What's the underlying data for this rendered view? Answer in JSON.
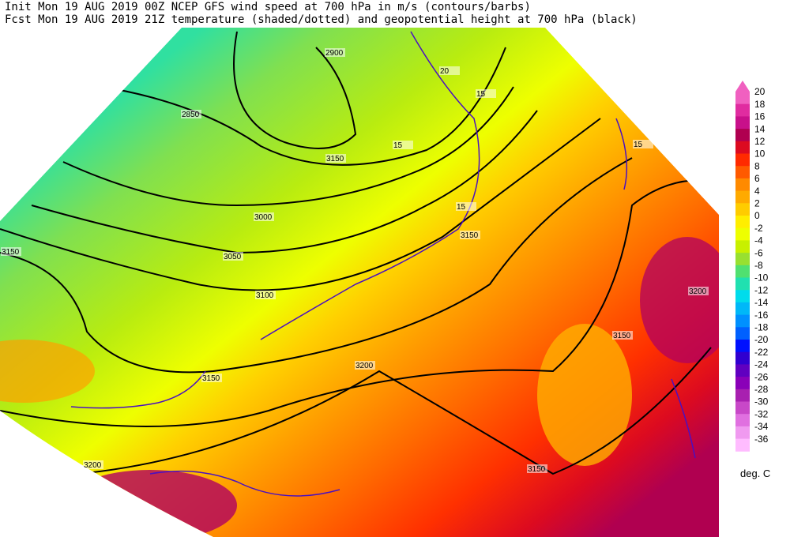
{
  "header": {
    "line1": "Init  Mon 19 AUG 2019 00Z  NCEP GFS wind speed at 700 hPa in m/s (contours/barbs)",
    "line2": "Fcst Mon 19 AUG 2019 21Z  temperature (shaded/dotted) and geopotential height at 700 hPa (black)"
  },
  "colorbar": {
    "levels": [
      {
        "value": 20,
        "color": "#f060c0"
      },
      {
        "value": 18,
        "color": "#e02ca0"
      },
      {
        "value": 16,
        "color": "#c8108a"
      },
      {
        "value": 14,
        "color": "#b00050"
      },
      {
        "value": 12,
        "color": "#dc0a20"
      },
      {
        "value": 10,
        "color": "#ff2a00"
      },
      {
        "value": 8,
        "color": "#ff5a00"
      },
      {
        "value": 6,
        "color": "#ff8a00"
      },
      {
        "value": 4,
        "color": "#ffaa00"
      },
      {
        "value": 2,
        "color": "#ffcc00"
      },
      {
        "value": 0,
        "color": "#ffee00"
      },
      {
        "value": -2,
        "color": "#eeff00"
      },
      {
        "value": -4,
        "color": "#c8f000"
      },
      {
        "value": -6,
        "color": "#98e030"
      },
      {
        "value": -8,
        "color": "#50e070"
      },
      {
        "value": -10,
        "color": "#20e0b0"
      },
      {
        "value": -12,
        "color": "#00dcec"
      },
      {
        "value": -14,
        "color": "#00b8f8"
      },
      {
        "value": -16,
        "color": "#0090ff"
      },
      {
        "value": -18,
        "color": "#0060ff"
      },
      {
        "value": -20,
        "color": "#0010ff"
      },
      {
        "value": -22,
        "color": "#3000d0"
      },
      {
        "value": -24,
        "color": "#6000c0"
      },
      {
        "value": -26,
        "color": "#8a00b8"
      },
      {
        "value": -28,
        "color": "#a820b0"
      },
      {
        "value": -30,
        "color": "#c848c8"
      },
      {
        "value": -32,
        "color": "#e070e0"
      },
      {
        "value": -34,
        "color": "#f09af0"
      },
      {
        "value": -36,
        "color": "#ffbcff"
      }
    ],
    "unit": "deg. C"
  },
  "contour_labels": [
    2900,
    2850,
    3000,
    3050,
    3100,
    3150,
    3150,
    3150,
    3200,
    3200,
    3200,
    3150,
    3150,
    3150,
    15,
    15,
    15,
    15,
    20
  ]
}
